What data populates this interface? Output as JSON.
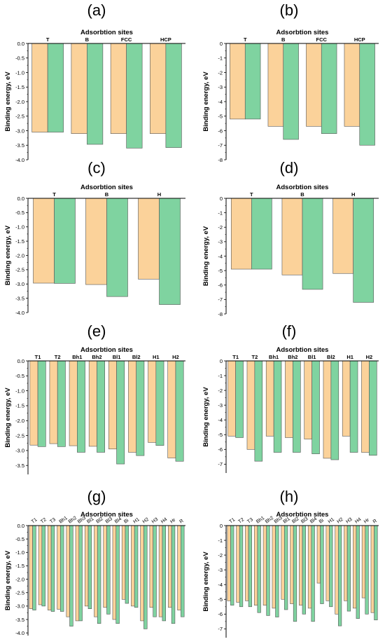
{
  "colors": {
    "orange": "#fbd29a",
    "green": "#7fd3a0",
    "edge": "#555555",
    "axis": "#000000"
  },
  "chart_data": [
    {
      "panel": "(a)",
      "type": "bar",
      "title": "Adsorbtion sites",
      "ylabel": "Binding energy, eV",
      "ylim": [
        -4.0,
        0.0
      ],
      "yticks": [
        0.0,
        -0.5,
        -1.0,
        -1.5,
        -2.0,
        -2.5,
        -3.0,
        -3.5,
        -4.0
      ],
      "categories": [
        "T",
        "B",
        "FCC",
        "HCP"
      ],
      "series": [
        {
          "values": [
            -3.05,
            -3.1,
            -3.1,
            -3.1
          ]
        },
        {
          "values": [
            -3.05,
            -3.47,
            -3.6,
            -3.58
          ]
        }
      ]
    },
    {
      "panel": "(b)",
      "type": "bar",
      "title": "Adsorbtion sites",
      "ylabel": "Binding energy, eV",
      "ylim": [
        -8,
        0
      ],
      "yticks": [
        0,
        -1,
        -2,
        -3,
        -4,
        -5,
        -6,
        -7,
        -8
      ],
      "categories": [
        "T",
        "B",
        "FCC",
        "HCP"
      ],
      "series": [
        {
          "values": [
            -5.2,
            -5.7,
            -5.7,
            -5.7
          ]
        },
        {
          "values": [
            -5.2,
            -6.6,
            -6.2,
            -7.0
          ]
        }
      ]
    },
    {
      "panel": "(c)",
      "type": "bar",
      "title": "Adsorbtion sites",
      "ylabel": "Binding energy, eV",
      "ylim": [
        -4.0,
        0.0
      ],
      "yticks": [
        0.0,
        -0.5,
        -1.0,
        -1.5,
        -2.0,
        -2.5,
        -3.0,
        -3.5,
        -4.0
      ],
      "categories": [
        "T",
        "B",
        "H"
      ],
      "series": [
        {
          "values": [
            -2.97,
            -3.02,
            -2.83
          ]
        },
        {
          "values": [
            -2.98,
            -3.44,
            -3.72
          ]
        }
      ]
    },
    {
      "panel": "(d)",
      "type": "bar",
      "title": "Adsorbtion sites",
      "ylabel": "Binding energy, eV",
      "ylim": [
        -8,
        0
      ],
      "yticks": [
        0,
        -1,
        -2,
        -3,
        -4,
        -5,
        -6,
        -7,
        -8
      ],
      "categories": [
        "T",
        "B",
        "H"
      ],
      "series": [
        {
          "values": [
            -4.9,
            -5.3,
            -5.2
          ]
        },
        {
          "values": [
            -4.9,
            -6.3,
            -7.2
          ]
        }
      ]
    },
    {
      "panel": "(e)",
      "type": "bar",
      "title": "Adsorbtion sites",
      "ylabel": "Binding energy, eV",
      "ylim": [
        -3.8,
        0.0
      ],
      "yticks": [
        0.0,
        -0.5,
        -1.0,
        -1.5,
        -2.0,
        -2.5,
        -3.0,
        -3.5
      ],
      "categories": [
        "T1",
        "T2",
        "Bh1",
        "Bh2",
        "Bl1",
        "Bl2",
        "H1",
        "H2"
      ],
      "series": [
        {
          "values": [
            -2.82,
            -2.77,
            -2.84,
            -2.86,
            -2.95,
            -3.06,
            -2.73,
            -3.25
          ]
        },
        {
          "values": [
            -2.87,
            -2.87,
            -3.06,
            -3.06,
            -3.45,
            -3.17,
            -2.83,
            -3.36
          ]
        }
      ]
    },
    {
      "panel": "(f)",
      "type": "bar",
      "title": "Adsorbtion sites",
      "ylabel": "Binding energy, eV",
      "ylim": [
        -7.6,
        0
      ],
      "yticks": [
        0,
        -1,
        -2,
        -3,
        -4,
        -5,
        -6,
        -7
      ],
      "categories": [
        "T1",
        "T2",
        "Bh1",
        "Bh2",
        "Bl1",
        "Bl2",
        "H1",
        "H2"
      ],
      "series": [
        {
          "values": [
            -5.1,
            -6.0,
            -5.1,
            -5.2,
            -5.3,
            -6.6,
            -5.1,
            -6.2
          ]
        },
        {
          "values": [
            -5.2,
            -6.8,
            -6.2,
            -6.2,
            -6.3,
            -6.7,
            -6.2,
            -6.4
          ]
        }
      ]
    },
    {
      "panel": "(g)",
      "type": "bar",
      "title": "Adsorbtion sites",
      "ylabel": "Binding energy, eV",
      "ylim": [
        -4.1,
        0.0
      ],
      "yticks": [
        0.0,
        -0.5,
        -1.0,
        -1.5,
        -2.0,
        -2.5,
        -3.0,
        -3.5,
        -4.0
      ],
      "categories": [
        "T1",
        "T2",
        "T3",
        "Bh1",
        "Bh2",
        "Bh3",
        "Bl1",
        "Bl2",
        "Bl3",
        "Bl4",
        "Bi",
        "H1",
        "H2",
        "H3",
        "H4",
        "Hr",
        "R"
      ],
      "series": [
        {
          "values": [
            -3.1,
            -2.95,
            -3.15,
            -3.12,
            -3.4,
            -3.55,
            -3.0,
            -3.4,
            -3.05,
            -3.5,
            -2.75,
            -3.0,
            -3.55,
            -3.05,
            -3.4,
            -3.05,
            -3.15
          ]
        },
        {
          "values": [
            -3.15,
            -3.0,
            -3.2,
            -3.2,
            -3.75,
            -3.55,
            -3.1,
            -3.65,
            -3.3,
            -3.65,
            -2.9,
            -3.05,
            -3.85,
            -3.4,
            -3.55,
            -3.65,
            -3.4
          ]
        }
      ]
    },
    {
      "panel": "(h)",
      "type": "bar",
      "title": "Adsorbtion sites",
      "ylabel": "Binding energy, eV",
      "ylim": [
        -7.6,
        0
      ],
      "yticks": [
        0,
        -1,
        -2,
        -3,
        -4,
        -5,
        -6,
        -7
      ],
      "categories": [
        "T1",
        "T2",
        "T3",
        "Bh1",
        "Bh2",
        "Bh3",
        "Bl1",
        "Bl2",
        "Bl3",
        "Bl4",
        "Bi",
        "H1",
        "H2",
        "H3",
        "H4",
        "Hr",
        "R"
      ],
      "series": [
        {
          "values": [
            -5.1,
            -5.2,
            -5.1,
            -5.4,
            -5.4,
            -5.6,
            -5.0,
            -5.3,
            -5.4,
            -5.6,
            -3.9,
            -5.1,
            -6.0,
            -5.1,
            -5.6,
            -4.9,
            -5.9
          ]
        },
        {
          "values": [
            -5.4,
            -5.5,
            -5.5,
            -5.9,
            -6.1,
            -6.2,
            -5.7,
            -6.5,
            -6.0,
            -6.5,
            -5.3,
            -5.5,
            -6.8,
            -5.8,
            -6.3,
            -6.0,
            -6.4
          ]
        }
      ]
    }
  ]
}
